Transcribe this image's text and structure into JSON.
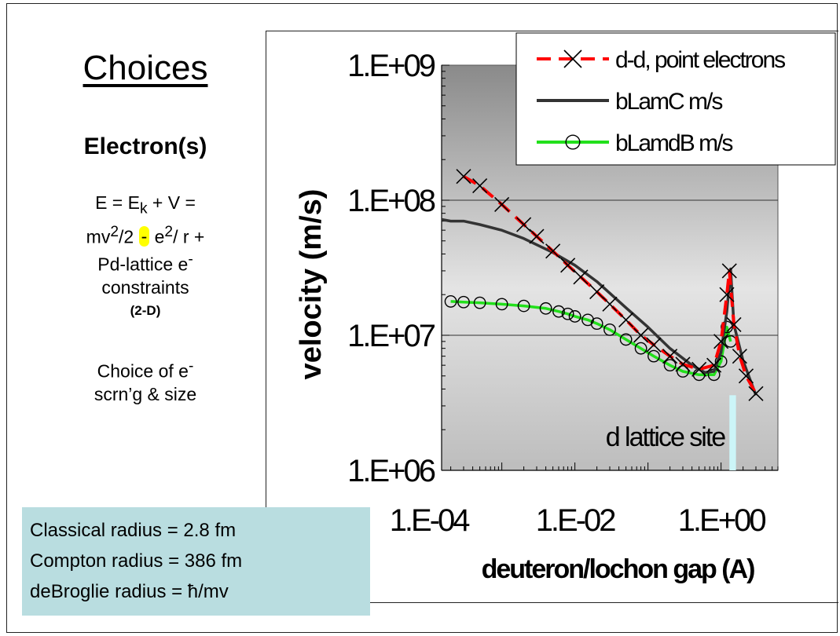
{
  "left_panel": {
    "heading": "Choices",
    "subheading": "Electron(s)",
    "equation": {
      "line1_a": "E = E",
      "line1_sub": "k",
      "line1_b": " + V =",
      "line2_a": "mv",
      "line2_sup1": "2",
      "line2_b": "/2 ",
      "minus": "-",
      "line2_c": " e",
      "line2_sup2": "2",
      "line2_d": "/ r +",
      "line3": "Pd-lattice e",
      "line3_sup": "-",
      "line4": "constraints",
      "line5": "(2-D)"
    },
    "choice": {
      "line1": "Choice of e",
      "line1_sup": "-",
      "line2": "scrn’g & size"
    }
  },
  "radius_box": {
    "lines": [
      "Classical radius = 2.8 fm",
      "Compton radius = 386 fm",
      "deBroglie radius = ħ/mv"
    ]
  },
  "chart_data": {
    "type": "scatter",
    "title": "",
    "xlabel": "deuteron/lochon gap (A)",
    "ylabel": "velocity (m/s)",
    "x_scale": "log",
    "y_scale": "log",
    "xlim": [
      0.00015,
      6
    ],
    "ylim": [
      1000000,
      1000000000
    ],
    "x_ticks": [
      0.0001,
      0.01,
      1
    ],
    "x_tick_labels": [
      "1.E-04",
      "1.E-02",
      "1.E+00"
    ],
    "y_ticks": [
      1000000,
      10000000,
      100000000,
      1000000000
    ],
    "y_tick_labels": [
      "1.E+06",
      "1.E+07",
      "1.E+08",
      "1.E+09"
    ],
    "grid": "horizontal major",
    "legend_position": "top-right",
    "annotation": {
      "text": "d lattice site",
      "x_from": 1.3,
      "x_to": 1.6,
      "y_from": 1000000,
      "y_to": 3600000,
      "color": "#ccf5f8"
    },
    "series": [
      {
        "name": "d-d, point electrons",
        "line_color": "#ff0000",
        "marker": "x",
        "marker_color": "#000000",
        "dash": true,
        "x": [
          0.0003,
          0.0005,
          0.001,
          0.002,
          0.003,
          0.005,
          0.008,
          0.012,
          0.02,
          0.03,
          0.05,
          0.08,
          0.12,
          0.2,
          0.3,
          0.5,
          0.8,
          1.0,
          1.2,
          1.3,
          1.5,
          1.8,
          2.2,
          3.0
        ],
        "y": [
          150000000,
          128000000,
          93000000,
          66000000,
          54000000,
          42000000,
          33000000,
          27000000,
          21000000,
          17000000,
          13000000,
          10000000,
          8500000,
          7000000,
          6100000,
          5600000,
          6000000,
          9000000,
          20000000,
          30000000,
          12000000,
          7000000,
          5000000,
          3700000
        ]
      },
      {
        "name": "bLamC m/s",
        "line_color": "#333333",
        "marker": "none",
        "x": [
          0.00015,
          0.0002,
          0.0003,
          0.0005,
          0.001,
          0.002,
          0.005,
          0.01,
          0.02,
          0.05,
          0.1,
          0.2,
          0.4,
          0.6,
          0.8,
          1.0,
          1.2,
          1.35,
          1.5,
          2.0,
          3.0
        ],
        "y": [
          72000000,
          70000000,
          70000000,
          66000000,
          60000000,
          52000000,
          41000000,
          33000000,
          25000000,
          16000000,
          11500000,
          8000000,
          6000000,
          5300000,
          5400000,
          7500000,
          15000000,
          31000000,
          12000000,
          6500000,
          3600000
        ]
      },
      {
        "name": "bLamdB m/s",
        "line_color": "#22e01b",
        "marker": "o",
        "marker_color": "#000000",
        "x": [
          0.0002,
          0.0003,
          0.0005,
          0.001,
          0.002,
          0.004,
          0.006,
          0.008,
          0.01,
          0.015,
          0.02,
          0.03,
          0.05,
          0.08,
          0.12,
          0.2,
          0.3,
          0.5,
          0.8,
          1.0,
          1.2,
          1.35
        ],
        "y": [
          17800000,
          17600000,
          17400000,
          17000000,
          16500000,
          15800000,
          15000000,
          14400000,
          13800000,
          13000000,
          12200000,
          11000000,
          9300000,
          8000000,
          7000000,
          6000000,
          5400000,
          5100000,
          5100000,
          6400000,
          11500000,
          9000000
        ]
      }
    ]
  }
}
